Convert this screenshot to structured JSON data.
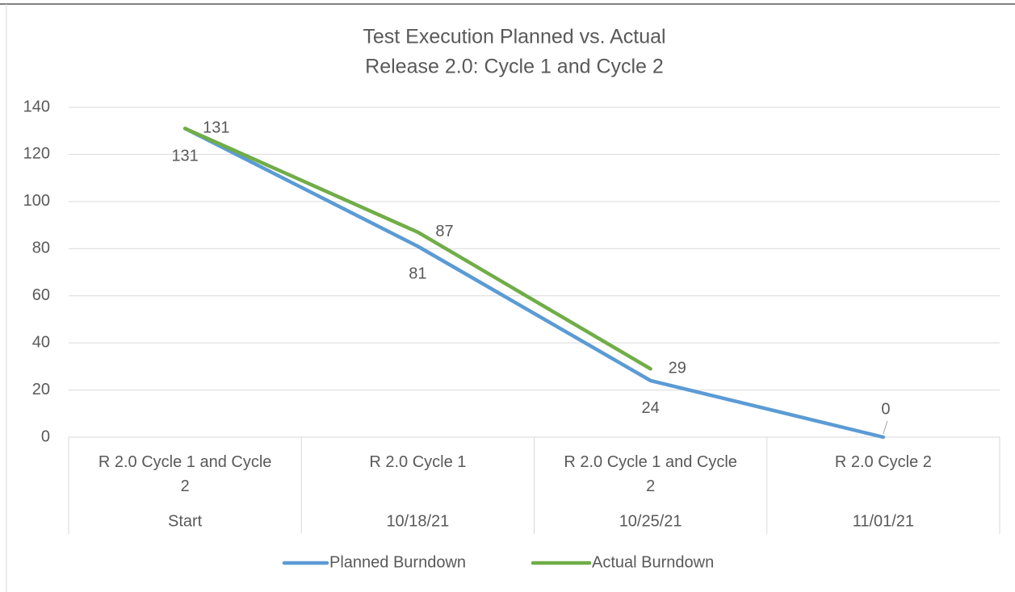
{
  "chart_data": {
    "type": "line",
    "title": "Test Execution Planned vs. Actual",
    "subtitle": "Release 2.0: Cycle 1 and Cycle 2",
    "categories": [
      "R 2.0 Cycle 1 and Cycle 2",
      "R 2.0 Cycle 1",
      "R 2.0 Cycle 1 and Cycle 2",
      "R 2.0 Cycle 2"
    ],
    "outer_categories": [
      "Start",
      "10/18/21",
      "10/25/21",
      "11/01/21"
    ],
    "series": [
      {
        "name": "Planned Burndown",
        "color": "#5b9bd5",
        "values": [
          131,
          81,
          24,
          0
        ]
      },
      {
        "name": "Actual Burndown",
        "color": "#70ad47",
        "values": [
          131,
          87,
          29,
          null
        ]
      }
    ],
    "ylim": [
      0,
      140
    ],
    "yticks": [
      0,
      20,
      40,
      60,
      80,
      100,
      120,
      140
    ],
    "grid": true,
    "legend": "bottom"
  }
}
